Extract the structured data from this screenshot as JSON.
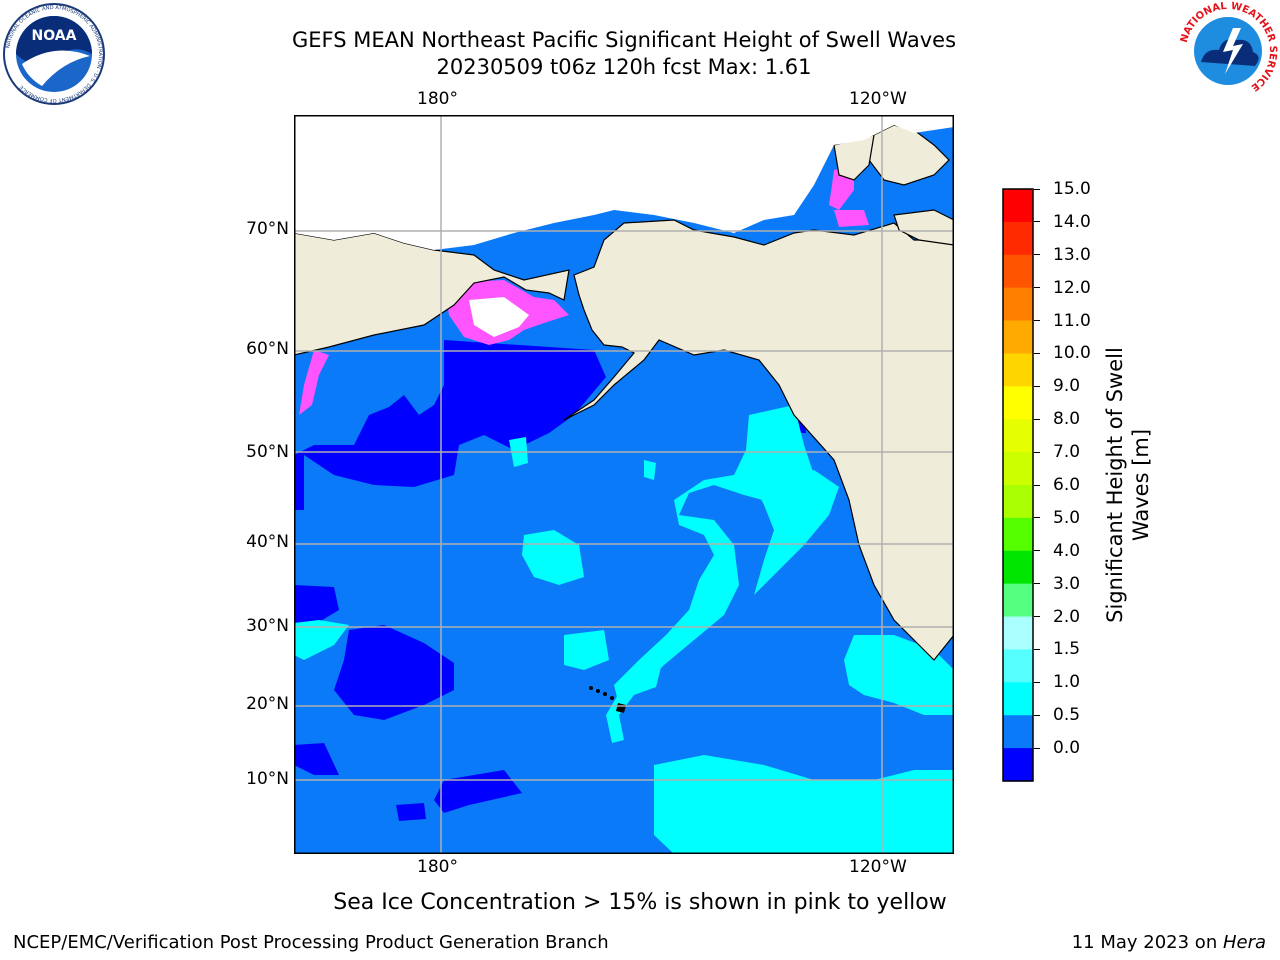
{
  "title_line1": "GEFS MEAN Northeast Pacific Significant Height of Swell Waves",
  "title_line2": "20230509 t06z 120h fcst   Max: 1.61",
  "logos": {
    "noaa_text": "NOAA",
    "noaa_ring": "NATIONAL OCEANIC AND ATMOSPHERIC ADMINISTRATION · U.S. DEPARTMENT OF COMMERCE",
    "nws_ring": "NATIONAL WEATHER SERVICE"
  },
  "map": {
    "lon_top_labels": [
      "180°",
      "120°W"
    ],
    "lon_bottom_labels": [
      "180°",
      "120°W"
    ],
    "lat_labels": [
      "70°N",
      "60°N",
      "50°N",
      "40°N",
      "30°N",
      "20°N",
      "10°N"
    ],
    "colors": {
      "land": "#efedda",
      "ocean_0_5": "#0000ff",
      "ocean_0_5_1": "#0a7af8",
      "ocean_1_1_5": "#00ffff",
      "ice": "#ff55ff"
    }
  },
  "colorbar": {
    "title_line1": "Significant Height of Swell",
    "title_line2": "Waves [m]",
    "ticks": [
      "15.0",
      "14.0",
      "13.0",
      "12.0",
      "11.0",
      "10.0",
      "9.0",
      "8.0",
      "7.0",
      "6.0",
      "5.0",
      "4.0",
      "3.0",
      "2.0",
      "1.5",
      "1.0",
      "0.5",
      "0.0"
    ],
    "colors": [
      "#ff0000",
      "#ff2a00",
      "#ff5500",
      "#ff8000",
      "#ffaa00",
      "#ffd500",
      "#ffff00",
      "#e6ff00",
      "#ccff00",
      "#aaff00",
      "#55ff00",
      "#00e600",
      "#55ff80",
      "#aaffff",
      "#55ffff",
      "#00ffff",
      "#0a7af8",
      "#0000ff"
    ]
  },
  "ice_note": "Sea Ice Concentration > 15% is shown in pink to yellow",
  "footer": {
    "left": "NCEP/EMC/Verification Post Processing Product Generation Branch",
    "date": "11 May 2023 on ",
    "machine": "Hera"
  }
}
